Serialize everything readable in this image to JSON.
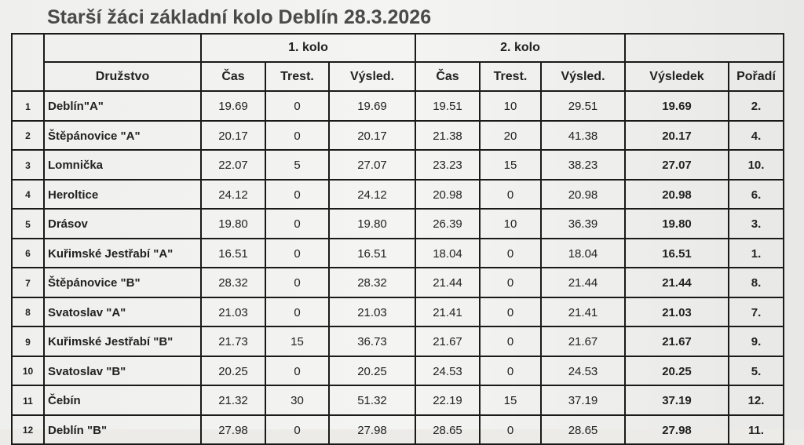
{
  "title": "Starší žáci základní kolo Deblín 28.3.2026",
  "table": {
    "groups": [
      "1. kolo",
      "2. kolo"
    ],
    "columns": [
      "Družstvo",
      "Čas",
      "Trest.",
      "Výsled.",
      "Čas",
      "Trest.",
      "Výsled.",
      "Výsledek",
      "Pořadí"
    ],
    "rows": [
      [
        "1",
        "Deblín\"A\"",
        "19.69",
        "0",
        "19.69",
        "19.51",
        "10",
        "29.51",
        "19.69",
        "2."
      ],
      [
        "2",
        "Štěpánovice \"A\"",
        "20.17",
        "0",
        "20.17",
        "21.38",
        "20",
        "41.38",
        "20.17",
        "4."
      ],
      [
        "3",
        "Lomnička",
        "22.07",
        "5",
        "27.07",
        "23.23",
        "15",
        "38.23",
        "27.07",
        "10."
      ],
      [
        "4",
        "Heroltice",
        "24.12",
        "0",
        "24.12",
        "20.98",
        "0",
        "20.98",
        "20.98",
        "6."
      ],
      [
        "5",
        "Drásov",
        "19.80",
        "0",
        "19.80",
        "26.39",
        "10",
        "36.39",
        "19.80",
        "3."
      ],
      [
        "6",
        "Kuřimské Jestřabí \"A\"",
        "16.51",
        "0",
        "16.51",
        "18.04",
        "0",
        "18.04",
        "16.51",
        "1."
      ],
      [
        "7",
        "Štěpánovice \"B\"",
        "28.32",
        "0",
        "28.32",
        "21.44",
        "0",
        "21.44",
        "21.44",
        "8."
      ],
      [
        "8",
        "Svatoslav \"A\"",
        "21.03",
        "0",
        "21.03",
        "21.41",
        "0",
        "21.41",
        "21.03",
        "7."
      ],
      [
        "9",
        "Kuřimské Jestřabí \"B\"",
        "21.73",
        "15",
        "36.73",
        "21.67",
        "0",
        "21.67",
        "21.67",
        "9."
      ],
      [
        "10",
        "Svatoslav \"B\"",
        "20.25",
        "0",
        "20.25",
        "24.53",
        "0",
        "24.53",
        "20.25",
        "5."
      ],
      [
        "11",
        "Čebín",
        "21.32",
        "30",
        "51.32",
        "22.19",
        "15",
        "37.19",
        "37.19",
        "12."
      ],
      [
        "12",
        "Deblín \"B\"",
        "27.98",
        "0",
        "27.98",
        "28.65",
        "0",
        "28.65",
        "27.98",
        "11."
      ]
    ]
  }
}
